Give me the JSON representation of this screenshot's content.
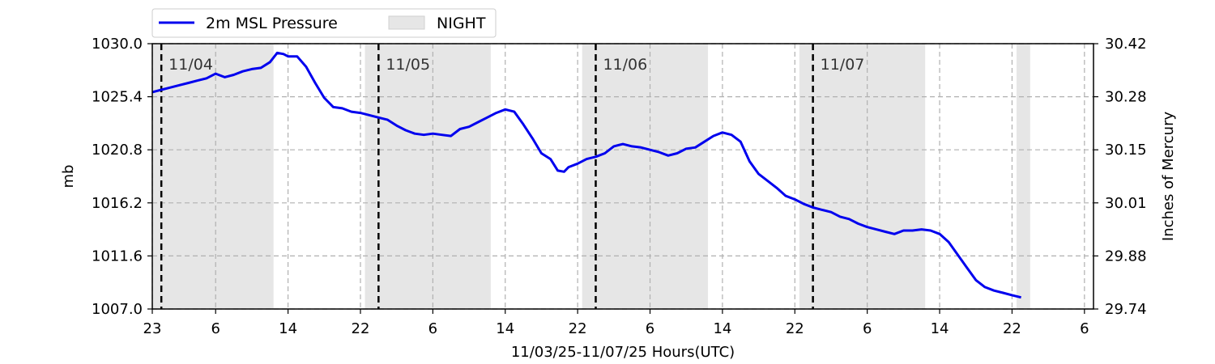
{
  "chart_data": {
    "type": "line",
    "xlabel": "11/03/25-11/07/25  Hours(UTC)",
    "ylabel_left": "mb",
    "ylabel_right": "Inches of Mercury",
    "ylim": [
      1007.0,
      1030.0
    ],
    "y_ticks_left": [
      "1007.0",
      "1011.6",
      "1016.2",
      "1020.8",
      "1025.4",
      "1030.0"
    ],
    "y_ticks_right": [
      "29.74",
      "29.88",
      "30.01",
      "30.15",
      "30.28",
      "30.42"
    ],
    "x_tick_hours": [
      0,
      7,
      15,
      23,
      31,
      39,
      47,
      55,
      63,
      71,
      79,
      87,
      95,
      103
    ],
    "x_tick_labels": [
      "23",
      "6",
      "14",
      "22",
      "6",
      "14",
      "22",
      "6",
      "14",
      "22",
      "6",
      "14",
      "22",
      "6"
    ],
    "x_range_hours": [
      0,
      104
    ],
    "day_markers": [
      {
        "hour": 1,
        "label": "11/04"
      },
      {
        "hour": 25,
        "label": "11/05"
      },
      {
        "hour": 49,
        "label": "11/06"
      },
      {
        "hour": 73,
        "label": "11/07"
      }
    ],
    "night_bands": [
      [
        0,
        13.4
      ],
      [
        23.5,
        37.4
      ],
      [
        47.5,
        61.4
      ],
      [
        71.5,
        85.4
      ],
      [
        95.5,
        97
      ]
    ],
    "series": [
      {
        "name": "2m MSL Pressure",
        "color": "#0000ee",
        "x": [
          0,
          1,
          2,
          3,
          4,
          5,
          6,
          7,
          8,
          9,
          10,
          11,
          12,
          13,
          13.8,
          14.5,
          15,
          16,
          17,
          18,
          19,
          20,
          21,
          22,
          23,
          24,
          25,
          26,
          27,
          28,
          29,
          30,
          31,
          32,
          33,
          34,
          35,
          36,
          37,
          38,
          39,
          40,
          41,
          42,
          43,
          44,
          44.8,
          45.5,
          46,
          47,
          48,
          49,
          50,
          51,
          52,
          53,
          54,
          55,
          56,
          57,
          58,
          59,
          60,
          61,
          62,
          63,
          64,
          65,
          66,
          67,
          68,
          69,
          70,
          71,
          72,
          73,
          74,
          75,
          76,
          77,
          78,
          79,
          80,
          81,
          82,
          83,
          84,
          85,
          86,
          87,
          88,
          89,
          90,
          91,
          92,
          93,
          94,
          95,
          96
        ],
        "values": [
          1025.8,
          1026.0,
          1026.2,
          1026.4,
          1026.6,
          1026.8,
          1027.0,
          1027.4,
          1027.1,
          1027.3,
          1027.6,
          1027.8,
          1027.9,
          1028.4,
          1029.2,
          1029.1,
          1028.9,
          1028.9,
          1028.0,
          1026.6,
          1025.3,
          1024.5,
          1024.4,
          1024.1,
          1024.0,
          1023.8,
          1023.6,
          1023.4,
          1022.9,
          1022.5,
          1022.2,
          1022.1,
          1022.2,
          1022.1,
          1022.0,
          1022.6,
          1022.8,
          1023.2,
          1023.6,
          1024.0,
          1024.3,
          1024.1,
          1023.0,
          1021.8,
          1020.5,
          1020.0,
          1019.0,
          1018.9,
          1019.3,
          1019.6,
          1020.0,
          1020.2,
          1020.5,
          1021.1,
          1021.3,
          1021.1,
          1021.0,
          1020.8,
          1020.6,
          1020.3,
          1020.5,
          1020.9,
          1021.0,
          1021.5,
          1022.0,
          1022.3,
          1022.1,
          1021.5,
          1019.8,
          1018.7,
          1018.1,
          1017.5,
          1016.8,
          1016.5,
          1016.1,
          1015.8,
          1015.6,
          1015.4,
          1015.0,
          1014.8,
          1014.4,
          1014.1,
          1013.9,
          1013.7,
          1013.5,
          1013.8,
          1013.8,
          1013.9,
          1013.8,
          1013.5,
          1012.8,
          1011.7,
          1010.6,
          1009.5,
          1008.9,
          1008.6,
          1008.4,
          1008.2,
          1008.0
        ]
      },
      {
        "name": "NIGHT",
        "color": "#e6e6e6"
      }
    ],
    "grid": true,
    "legend_position": "top-left-above"
  }
}
